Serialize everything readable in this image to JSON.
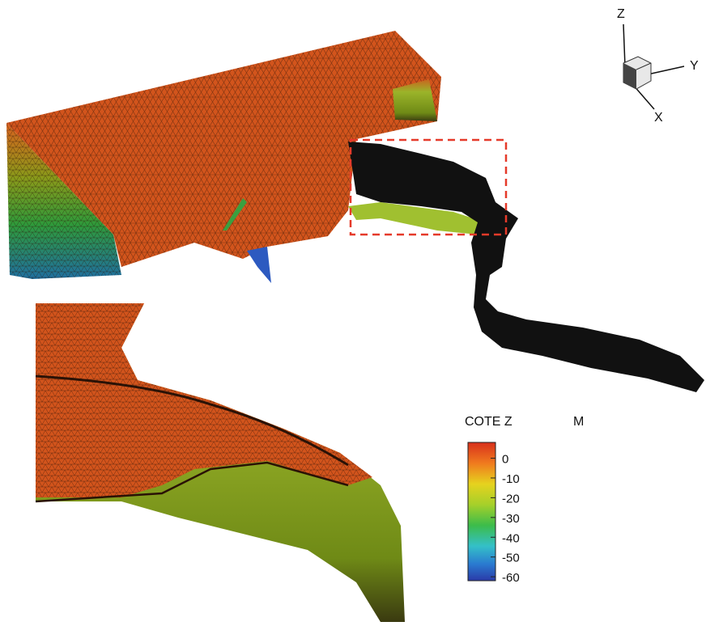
{
  "axes": {
    "z": "Z",
    "y": "Y",
    "x": "X"
  },
  "colorbar": {
    "title": "COTE Z",
    "unit": "M",
    "lim": [
      8,
      -62
    ],
    "ticks": [
      0,
      -10,
      -20,
      -30,
      -40,
      -50,
      -60
    ]
  }
}
